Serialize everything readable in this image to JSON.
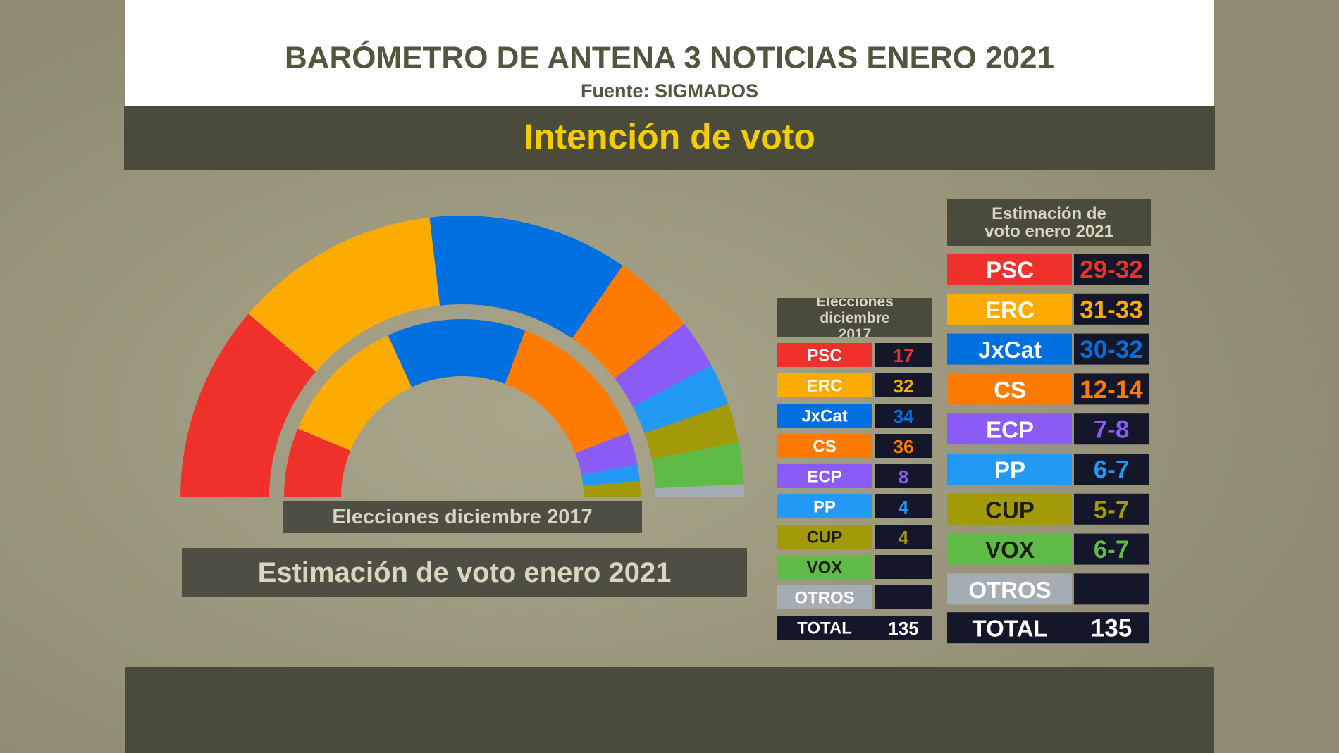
{
  "header": {
    "title": "BARÓMETRO DE ANTENA 3 NOTICIAS ENERO 2021",
    "source": "Fuente: SIGMADOS",
    "section": "Intención de voto"
  },
  "chart_data": {
    "type": "hemicycle",
    "parties": [
      "PSC",
      "ERC",
      "JxCat",
      "CS",
      "ECP",
      "PP",
      "CUP",
      "VOX",
      "OTROS"
    ],
    "colors": [
      "#f0312b",
      "#fdab00",
      "#0070e0",
      "#ff7a00",
      "#8a5cf5",
      "#2299f5",
      "#a39a0a",
      "#5dbb46",
      "#a5adb4"
    ],
    "series": [
      {
        "name": "Elecciones diciembre 2017",
        "values": [
          17,
          32,
          34,
          36,
          8,
          4,
          4,
          null,
          null
        ]
      },
      {
        "name": "Estimación de voto enero 2021",
        "low": [
          29,
          31,
          30,
          12,
          7,
          6,
          5,
          6,
          null
        ],
        "high": [
          32,
          33,
          32,
          14,
          8,
          7,
          7,
          7,
          null
        ],
        "value_labels": [
          "29-32",
          "31-33",
          "30-32",
          "12-14",
          "7-8",
          "6-7",
          "5-7",
          "6-7",
          null
        ]
      }
    ],
    "total_label": "TOTAL",
    "total": 135
  }
}
